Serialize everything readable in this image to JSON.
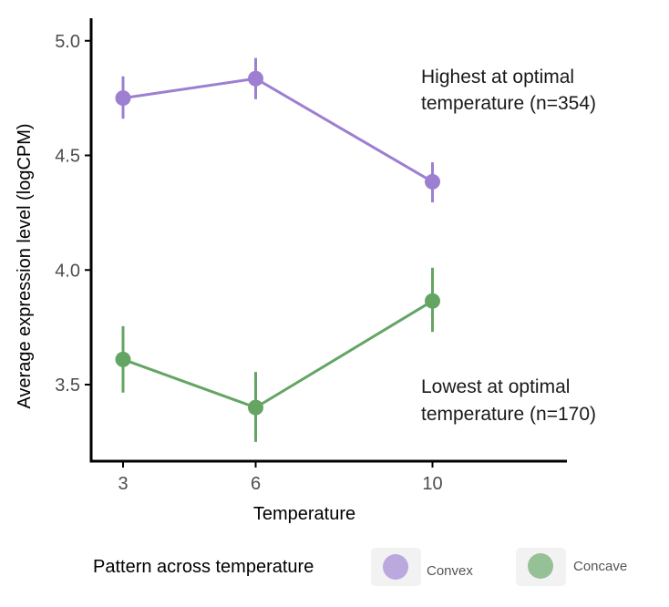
{
  "chart_data": {
    "type": "line",
    "title": "",
    "xlabel": "Temperature",
    "ylabel": "Average expression level (logCPM)",
    "x": [
      3,
      6,
      10
    ],
    "x_ticks": [
      "3",
      "6",
      "10"
    ],
    "y_ticks": [
      "3.5",
      "4.0",
      "4.5",
      "5.0"
    ],
    "ylim": [
      3.2,
      5.1
    ],
    "grid": false,
    "legend_title": "Pattern across temperature",
    "legend_position": "bottom",
    "series": [
      {
        "name": "Convex",
        "color": "#9d7fd2",
        "values": [
          4.75,
          4.835,
          4.385
        ],
        "lower": [
          4.66,
          4.745,
          4.295
        ],
        "upper": [
          4.845,
          4.925,
          4.47
        ]
      },
      {
        "name": "Concave",
        "color": "#64a564",
        "values": [
          3.61,
          3.4,
          3.865
        ],
        "lower": [
          3.465,
          3.25,
          3.73
        ],
        "upper": [
          3.755,
          3.555,
          4.01
        ]
      }
    ],
    "annotations": [
      {
        "lines": [
          "Highest at optimal",
          "temperature (n=354)"
        ]
      },
      {
        "lines": [
          "Lowest at optimal",
          "temperature (n=170)"
        ]
      }
    ]
  }
}
